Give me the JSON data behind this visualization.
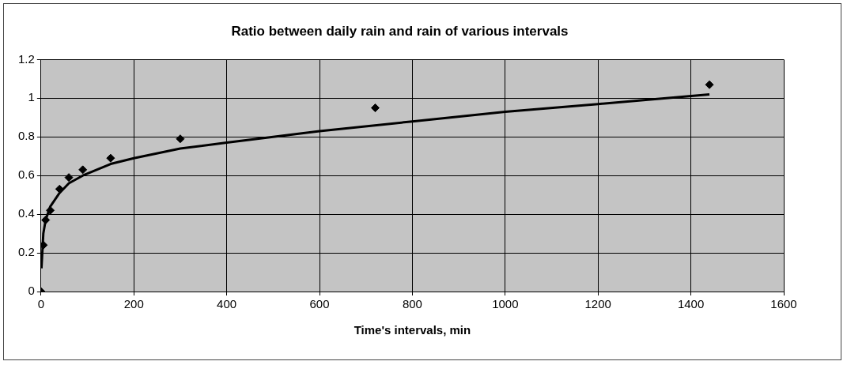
{
  "chart_data": {
    "type": "scatter",
    "title": "Ratio between daily rain and rain of various intervals",
    "xlabel": "Time's intervals, min",
    "xlim": [
      0,
      1600
    ],
    "xticks": [
      0,
      200,
      400,
      600,
      800,
      1000,
      1200,
      1400,
      1600
    ],
    "ylim": [
      0,
      1.2
    ],
    "yticks": [
      0,
      0.2,
      0.4,
      0.6,
      0.8,
      1,
      1.2
    ],
    "grid": true,
    "legend": false,
    "marker": "diamond",
    "series": [
      {
        "type": "scatter",
        "color": "#000000",
        "x": [
          0,
          5,
          10,
          20,
          40,
          60,
          90,
          150,
          300,
          720,
          1440
        ],
        "values": [
          0,
          0.24,
          0.37,
          0.42,
          0.53,
          0.59,
          0.63,
          0.69,
          0.79,
          0.95,
          1.07
        ]
      },
      {
        "type": "line",
        "color": "#000000",
        "marker": "none",
        "line_style": "solid",
        "x": [
          1,
          5,
          10,
          20,
          40,
          60,
          90,
          150,
          200,
          300,
          400,
          600,
          800,
          1000,
          1200,
          1440
        ],
        "values": [
          0.12,
          0.3,
          0.37,
          0.44,
          0.51,
          0.56,
          0.6,
          0.66,
          0.69,
          0.74,
          0.77,
          0.83,
          0.88,
          0.93,
          0.97,
          1.02
        ]
      }
    ]
  }
}
